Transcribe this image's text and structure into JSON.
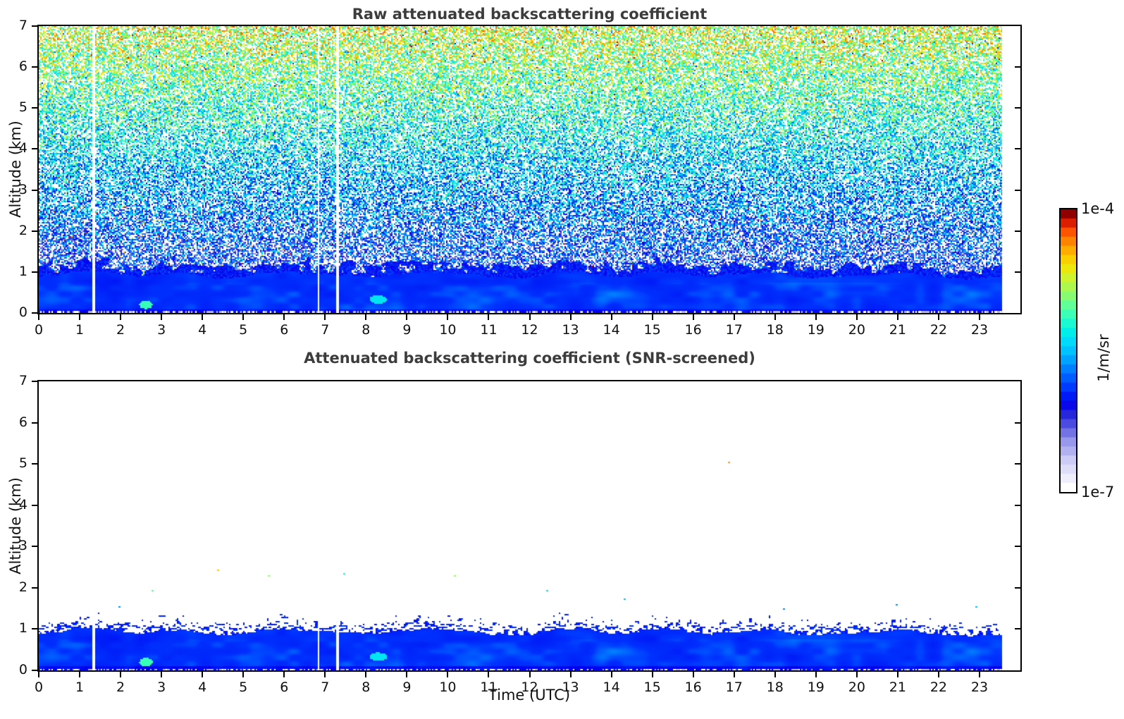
{
  "figure": {
    "panels": [
      {
        "title": "Raw attenuated backscattering coefficient"
      },
      {
        "title": "Attenuated backscattering coefficient (SNR-screened)"
      }
    ],
    "xlabel": "Time (UTC)",
    "ylabel": "Altitude (km)",
    "colorbar": {
      "max_label": "1e-4",
      "min_label": "1e-7",
      "unit_label": "1/m/sr"
    }
  },
  "chart_data": {
    "type": "heatmap",
    "x": {
      "label": "Time (UTC)",
      "range": [
        0,
        24
      ],
      "data_end": 23.55,
      "ticks": [
        0,
        1,
        2,
        3,
        4,
        5,
        6,
        7,
        8,
        9,
        10,
        11,
        12,
        13,
        14,
        15,
        16,
        17,
        18,
        19,
        20,
        21,
        22,
        23
      ]
    },
    "y": {
      "label": "Altitude (km)",
      "range": [
        0,
        7
      ],
      "ticks": [
        0,
        1,
        2,
        3,
        4,
        5,
        6,
        7
      ]
    },
    "color_scale": {
      "unit": "1/m/sr",
      "scale": "log",
      "vmin": 1e-07,
      "vmax": 0.0001,
      "bar_labels": {
        "top": "1e-4",
        "bottom": "1e-7"
      },
      "discrete_steps": 31
    },
    "colormap_stops": [
      [
        0.0,
        "#ffffff"
      ],
      [
        0.04,
        "#eaeafc"
      ],
      [
        0.09,
        "#d4d4f9"
      ],
      [
        0.13,
        "#b4b4f2"
      ],
      [
        0.18,
        "#8c8cea"
      ],
      [
        0.22,
        "#5a5ae2"
      ],
      [
        0.27,
        "#2222dd"
      ],
      [
        0.31,
        "#0000f0"
      ],
      [
        0.36,
        "#0036ff"
      ],
      [
        0.42,
        "#0070ff"
      ],
      [
        0.47,
        "#00a8ff"
      ],
      [
        0.52,
        "#00d4ff"
      ],
      [
        0.57,
        "#00f0e8"
      ],
      [
        0.62,
        "#2cffc4"
      ],
      [
        0.67,
        "#64ff94"
      ],
      [
        0.72,
        "#a0fa5a"
      ],
      [
        0.77,
        "#d2f22a"
      ],
      [
        0.81,
        "#f4e400"
      ],
      [
        0.85,
        "#ffc000"
      ],
      [
        0.89,
        "#ff9000"
      ],
      [
        0.93,
        "#ff5a00"
      ],
      [
        0.96,
        "#e62800"
      ],
      [
        0.98,
        "#c40a00"
      ],
      [
        1.0,
        "#900000"
      ]
    ],
    "data_gaps_utc": [
      1.33,
      6.84,
      7.29
    ],
    "boundary_layer": {
      "top_base_km": 0.8,
      "top_amp_km": 0.22,
      "top_ripple_km": 0.06,
      "tt_base": 0.33,
      "typical_value_1_per_m_sr": 3e-06,
      "wisp_value_1_per_m_sr": 9e-06,
      "ragged_zone_km": 0.42
    },
    "hotspots": [
      {
        "t": 2.62,
        "h": 0.2,
        "rt": 0.16,
        "rh": 0.1,
        "tt": 0.63
      },
      {
        "t": 8.3,
        "h": 0.33,
        "rt": 0.22,
        "rh": 0.1,
        "tt": 0.55
      }
    ],
    "raw_noise": {
      "density": 0.63,
      "tt_base": 0.235,
      "tt_per_km": 0.0755,
      "tt_spread": 0.37,
      "outlier_prob": 0.04
    },
    "screened_speckle": {
      "zone_km": 0.4,
      "threshold_base": 0.5,
      "threshold_per_km": 1.15,
      "tt": 0.315
    },
    "sparse_dots": [
      {
        "t": 4.35,
        "h": 2.45,
        "tt": 0.84
      },
      {
        "t": 2.75,
        "h": 1.95,
        "tt": 0.66
      },
      {
        "t": 5.6,
        "h": 2.3,
        "tt": 0.7
      },
      {
        "t": 7.45,
        "h": 2.35,
        "tt": 0.6
      },
      {
        "t": 10.15,
        "h": 2.3,
        "tt": 0.72
      },
      {
        "t": 16.85,
        "h": 5.05,
        "tt": 0.88
      },
      {
        "t": 12.4,
        "h": 1.95,
        "tt": 0.55
      },
      {
        "t": 14.3,
        "h": 1.75,
        "tt": 0.5
      },
      {
        "t": 18.2,
        "h": 1.5,
        "tt": 0.45
      },
      {
        "t": 20.95,
        "h": 1.6,
        "tt": 0.45
      },
      {
        "t": 22.9,
        "h": 1.55,
        "tt": 0.5
      },
      {
        "t": 1.95,
        "h": 1.55,
        "tt": 0.45
      }
    ]
  }
}
